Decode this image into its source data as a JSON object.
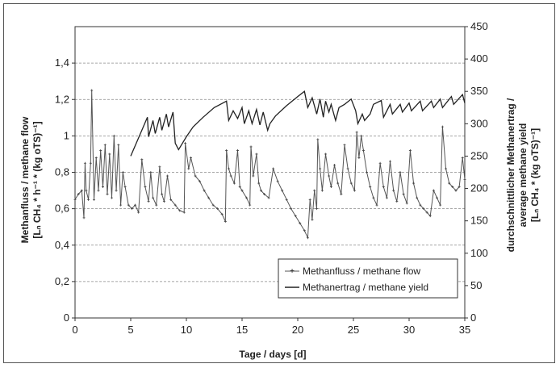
{
  "chart_data": {
    "type": "line",
    "xlabel": "Tage / days [d]",
    "ylabel_left_line1": "Methanfluss / methane flow",
    "ylabel_left_line2": "[Lₙ CH₄ * h⁻¹ * (kg oTS)⁻¹]",
    "ylabel_right_line1": "durchschnittlicher Methanertrag /",
    "ylabel_right_line2": "average methane yield",
    "ylabel_right_line3": "[Lₙ CH₄ * (kg oTS)⁻¹]",
    "xlim": [
      0,
      35
    ],
    "ylim_left": [
      0,
      1.6
    ],
    "ylim_right": [
      0,
      450
    ],
    "x_ticks": [
      "0",
      "5",
      "10",
      "15",
      "20",
      "25",
      "30",
      "35"
    ],
    "y_left_ticks": [
      "0",
      "0,2",
      "0,4",
      "0,6",
      "0,8",
      "1",
      "1,2",
      "1,4"
    ],
    "y_right_ticks": [
      "0",
      "50",
      "100",
      "150",
      "200",
      "250",
      "300",
      "350",
      "400",
      "450"
    ],
    "grid": true,
    "legend_position": "bottom-right",
    "series": [
      {
        "name": "Methanfluss / methane flow",
        "axis": "left",
        "style": "line-with-markers",
        "x": [
          0,
          0.3,
          0.6,
          0.8,
          0.9,
          1.0,
          1.2,
          1.4,
          1.5,
          1.7,
          1.9,
          2.1,
          2.3,
          2.5,
          2.7,
          2.9,
          3.1,
          3.3,
          3.5,
          3.7,
          3.9,
          4.1,
          4.3,
          4.5,
          4.8,
          5.1,
          5.4,
          5.7,
          6.0,
          6.3,
          6.6,
          6.8,
          7.0,
          7.3,
          7.6,
          7.8,
          8.0,
          8.3,
          8.6,
          9.0,
          9.4,
          9.8,
          9.9,
          10.2,
          10.4,
          10.8,
          11.2,
          11.6,
          12.0,
          12.4,
          12.8,
          13.2,
          13.5,
          13.6,
          13.8,
          14.0,
          14.3,
          14.6,
          14.8,
          15.0,
          15.4,
          15.7,
          15.8,
          16.0,
          16.3,
          16.5,
          16.7,
          17.0,
          17.4,
          17.8,
          18.2,
          18.6,
          19.0,
          19.4,
          19.8,
          20.2,
          20.6,
          20.9,
          21.1,
          21.3,
          21.5,
          21.7,
          21.8,
          22.0,
          22.2,
          22.5,
          22.8,
          23.0,
          23.3,
          23.6,
          23.9,
          24.2,
          24.5,
          24.8,
          25.1,
          25.3,
          25.5,
          25.7,
          25.9,
          26.2,
          26.5,
          26.8,
          27.1,
          27.4,
          27.7,
          28.0,
          28.3,
          28.6,
          28.9,
          29.2,
          29.5,
          29.8,
          30.1,
          30.4,
          30.7,
          31.0,
          31.3,
          31.6,
          31.9,
          32.2,
          32.5,
          32.8,
          33.0,
          33.3,
          33.6,
          33.9,
          34.2,
          34.5,
          34.8,
          35.0
        ],
        "values": [
          0.65,
          0.68,
          0.7,
          0.55,
          0.85,
          0.7,
          0.65,
          0.85,
          1.25,
          0.65,
          0.88,
          0.7,
          0.92,
          0.72,
          0.95,
          0.68,
          0.9,
          0.66,
          1.0,
          0.7,
          0.95,
          0.62,
          0.8,
          0.72,
          0.62,
          0.6,
          0.62,
          0.58,
          0.87,
          0.72,
          0.64,
          0.8,
          0.66,
          0.62,
          0.83,
          0.68,
          0.64,
          0.78,
          0.65,
          0.62,
          0.59,
          0.58,
          0.96,
          0.82,
          0.88,
          0.78,
          0.75,
          0.7,
          0.66,
          0.62,
          0.6,
          0.57,
          0.53,
          0.92,
          0.82,
          0.78,
          0.74,
          0.92,
          0.72,
          0.7,
          0.66,
          0.62,
          0.94,
          0.78,
          0.9,
          0.74,
          0.7,
          0.68,
          0.66,
          0.82,
          0.75,
          0.7,
          0.65,
          0.6,
          0.56,
          0.52,
          0.48,
          0.44,
          0.65,
          0.54,
          0.7,
          0.6,
          0.98,
          0.82,
          0.7,
          0.9,
          0.78,
          0.72,
          0.84,
          0.74,
          0.68,
          0.95,
          0.82,
          0.74,
          0.7,
          1.02,
          0.88,
          1.0,
          0.92,
          0.8,
          0.72,
          0.66,
          0.62,
          0.85,
          0.72,
          0.66,
          0.86,
          0.7,
          0.64,
          0.8,
          0.68,
          0.63,
          0.92,
          0.74,
          0.66,
          0.62,
          0.6,
          0.58,
          0.56,
          0.7,
          0.66,
          0.62,
          1.05,
          0.82,
          0.74,
          0.72,
          0.7,
          0.72,
          0.88,
          0.76
        ]
      },
      {
        "name": "Methanertrag / methane yield",
        "axis": "right",
        "style": "line",
        "x": [
          5.0,
          5.5,
          6.0,
          6.5,
          6.6,
          7.0,
          7.2,
          7.6,
          7.8,
          8.2,
          8.4,
          8.8,
          9.0,
          9.3,
          10.0,
          10.6,
          11.5,
          12.5,
          13.6,
          13.8,
          14.2,
          14.6,
          15.0,
          15.2,
          15.6,
          15.9,
          16.3,
          16.6,
          16.9,
          17.3,
          17.5,
          18.0,
          19.0,
          20.0,
          20.6,
          20.9,
          21.3,
          21.7,
          22.0,
          22.3,
          22.5,
          22.8,
          23.0,
          23.4,
          23.7,
          24.2,
          24.8,
          25.2,
          25.4,
          25.8,
          26.0,
          26.5,
          26.8,
          27.5,
          27.7,
          28.3,
          28.5,
          29.2,
          29.4,
          30.0,
          30.2,
          31.0,
          31.2,
          32.0,
          32.2,
          32.8,
          33.0,
          33.8,
          34.0,
          34.8,
          35.0
        ],
        "values": [
          250,
          270,
          290,
          310,
          280,
          305,
          285,
          310,
          290,
          315,
          295,
          318,
          270,
          260,
          280,
          295,
          310,
          325,
          335,
          305,
          320,
          308,
          325,
          300,
          320,
          300,
          322,
          298,
          318,
          290,
          300,
          312,
          328,
          342,
          350,
          325,
          340,
          315,
          338,
          310,
          335,
          318,
          330,
          305,
          325,
          330,
          338,
          320,
          300,
          315,
          305,
          315,
          330,
          336,
          310,
          330,
          315,
          330,
          318,
          332,
          320,
          335,
          320,
          335,
          325,
          338,
          325,
          342,
          330,
          345,
          332
        ]
      }
    ]
  }
}
